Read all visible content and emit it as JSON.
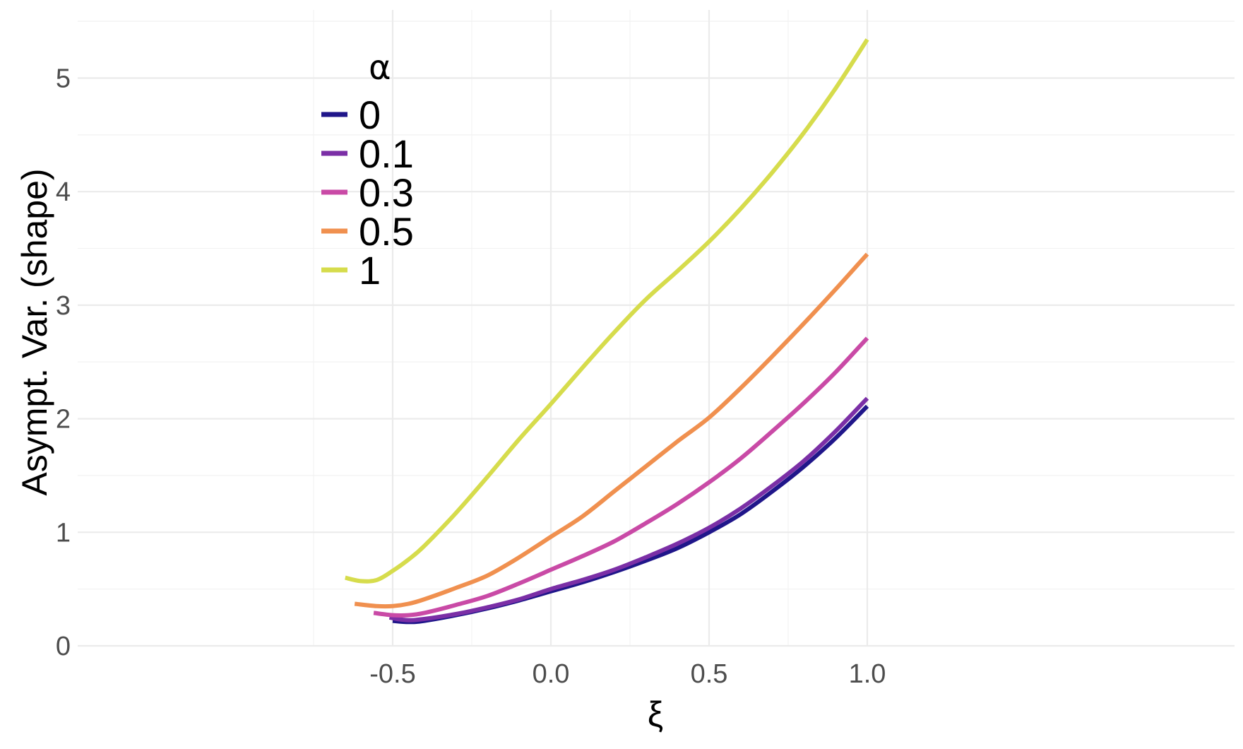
{
  "chart_data": {
    "type": "line",
    "xlabel": "ξ",
    "ylabel": "Asympt. Var. (shape)",
    "xlim": [
      -0.75,
      1.15
    ],
    "ylim": [
      -0.1,
      5.5
    ],
    "x_ticks": [
      -0.5,
      0.0,
      0.5,
      1.0
    ],
    "x_tick_labels": [
      "-0.5",
      "0.0",
      "0.5",
      "1.0"
    ],
    "y_ticks": [
      0,
      1,
      2,
      3,
      4,
      5
    ],
    "y_tick_labels": [
      "0",
      "1",
      "2",
      "3",
      "4",
      "5"
    ],
    "grid": true,
    "legend": {
      "title": "α",
      "position": "top-left (inside plot)"
    },
    "series": [
      {
        "name": "0",
        "color": "#20168a",
        "points": [
          [
            -0.5,
            0.22
          ],
          [
            -0.45,
            0.21
          ],
          [
            -0.4,
            0.22
          ],
          [
            -0.3,
            0.27
          ],
          [
            -0.2,
            0.33
          ],
          [
            -0.1,
            0.4
          ],
          [
            0.0,
            0.48
          ],
          [
            0.1,
            0.56
          ],
          [
            0.2,
            0.65
          ],
          [
            0.3,
            0.75
          ],
          [
            0.4,
            0.86
          ],
          [
            0.5,
            1.0
          ],
          [
            0.6,
            1.16
          ],
          [
            0.7,
            1.36
          ],
          [
            0.8,
            1.58
          ],
          [
            0.9,
            1.83
          ],
          [
            1.0,
            2.11
          ]
        ]
      },
      {
        "name": "0.1",
        "color": "#7b2fa6",
        "points": [
          [
            -0.51,
            0.25
          ],
          [
            -0.47,
            0.23
          ],
          [
            -0.42,
            0.23
          ],
          [
            -0.3,
            0.28
          ],
          [
            -0.2,
            0.34
          ],
          [
            -0.1,
            0.41
          ],
          [
            0.0,
            0.5
          ],
          [
            0.1,
            0.58
          ],
          [
            0.2,
            0.67
          ],
          [
            0.3,
            0.78
          ],
          [
            0.4,
            0.9
          ],
          [
            0.5,
            1.04
          ],
          [
            0.6,
            1.21
          ],
          [
            0.7,
            1.41
          ],
          [
            0.8,
            1.63
          ],
          [
            0.9,
            1.89
          ],
          [
            1.0,
            2.18
          ]
        ]
      },
      {
        "name": "0.3",
        "color": "#c94aa6",
        "points": [
          [
            -0.56,
            0.29
          ],
          [
            -0.5,
            0.27
          ],
          [
            -0.45,
            0.27
          ],
          [
            -0.4,
            0.29
          ],
          [
            -0.3,
            0.36
          ],
          [
            -0.2,
            0.44
          ],
          [
            -0.1,
            0.55
          ],
          [
            0.0,
            0.67
          ],
          [
            0.1,
            0.79
          ],
          [
            0.2,
            0.92
          ],
          [
            0.3,
            1.08
          ],
          [
            0.4,
            1.25
          ],
          [
            0.5,
            1.44
          ],
          [
            0.6,
            1.65
          ],
          [
            0.7,
            1.89
          ],
          [
            0.8,
            2.14
          ],
          [
            0.9,
            2.41
          ],
          [
            1.0,
            2.71
          ]
        ]
      },
      {
        "name": "0.5",
        "color": "#f0904f",
        "points": [
          [
            -0.62,
            0.37
          ],
          [
            -0.55,
            0.35
          ],
          [
            -0.5,
            0.35
          ],
          [
            -0.45,
            0.37
          ],
          [
            -0.4,
            0.41
          ],
          [
            -0.3,
            0.51
          ],
          [
            -0.2,
            0.62
          ],
          [
            -0.1,
            0.78
          ],
          [
            0.0,
            0.96
          ],
          [
            0.1,
            1.14
          ],
          [
            0.2,
            1.36
          ],
          [
            0.3,
            1.58
          ],
          [
            0.4,
            1.8
          ],
          [
            0.5,
            2.01
          ],
          [
            0.6,
            2.27
          ],
          [
            0.7,
            2.55
          ],
          [
            0.8,
            2.84
          ],
          [
            0.9,
            3.14
          ],
          [
            1.0,
            3.45
          ]
        ]
      },
      {
        "name": "1",
        "color": "#d6dc4c",
        "points": [
          [
            -0.65,
            0.6
          ],
          [
            -0.6,
            0.57
          ],
          [
            -0.55,
            0.58
          ],
          [
            -0.5,
            0.66
          ],
          [
            -0.45,
            0.76
          ],
          [
            -0.4,
            0.88
          ],
          [
            -0.3,
            1.17
          ],
          [
            -0.2,
            1.49
          ],
          [
            -0.1,
            1.82
          ],
          [
            0.0,
            2.13
          ],
          [
            0.1,
            2.45
          ],
          [
            0.2,
            2.76
          ],
          [
            0.3,
            3.05
          ],
          [
            0.4,
            3.3
          ],
          [
            0.5,
            3.56
          ],
          [
            0.6,
            3.85
          ],
          [
            0.7,
            4.17
          ],
          [
            0.8,
            4.52
          ],
          [
            0.9,
            4.91
          ],
          [
            1.0,
            5.34
          ]
        ]
      }
    ]
  }
}
